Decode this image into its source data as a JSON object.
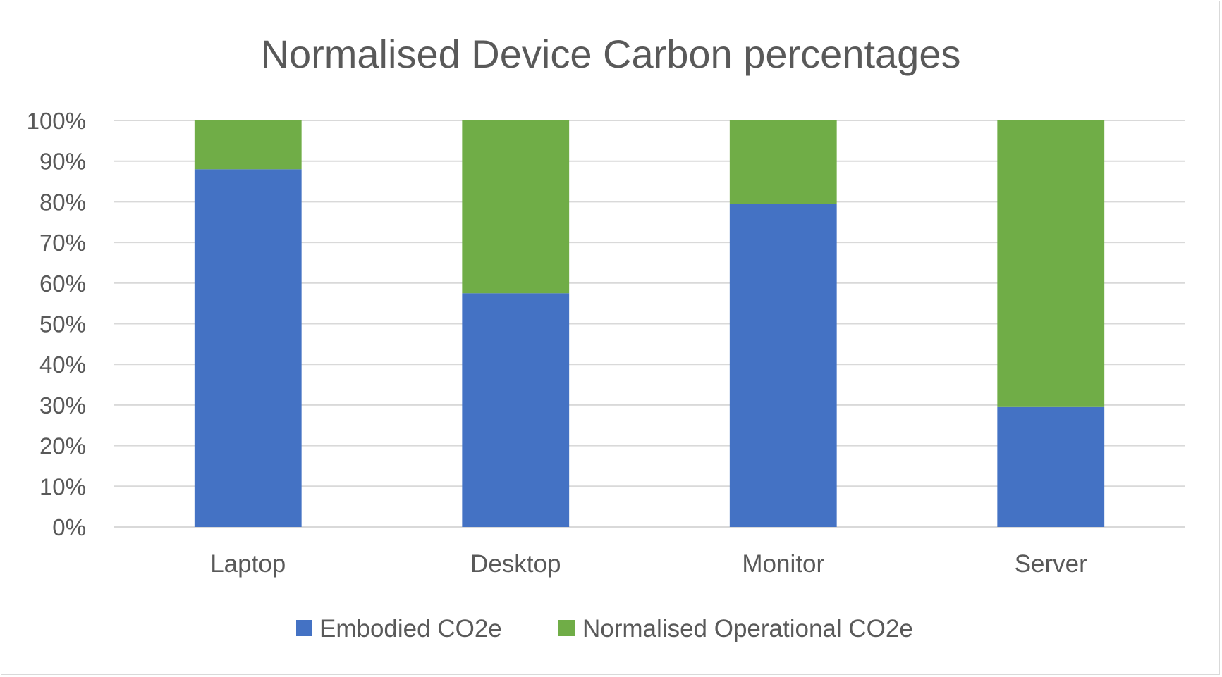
{
  "chart_data": {
    "type": "bar",
    "stacked": true,
    "percent": true,
    "title": "Normalised Device Carbon percentages",
    "categories": [
      "Laptop",
      "Desktop",
      "Monitor",
      "Server"
    ],
    "series": [
      {
        "name": "Embodied CO2e",
        "color": "#4472c4",
        "values": [
          88,
          57.5,
          79.5,
          29.5
        ]
      },
      {
        "name": "Normalised Operational CO2e",
        "color": "#70ad47",
        "values": [
          12,
          42.5,
          20.5,
          70.5
        ]
      }
    ],
    "y_ticks": [
      "0%",
      "10%",
      "20%",
      "30%",
      "40%",
      "50%",
      "60%",
      "70%",
      "80%",
      "90%",
      "100%"
    ],
    "ylim": [
      0,
      100
    ],
    "grid": true,
    "legend_position": "bottom"
  }
}
